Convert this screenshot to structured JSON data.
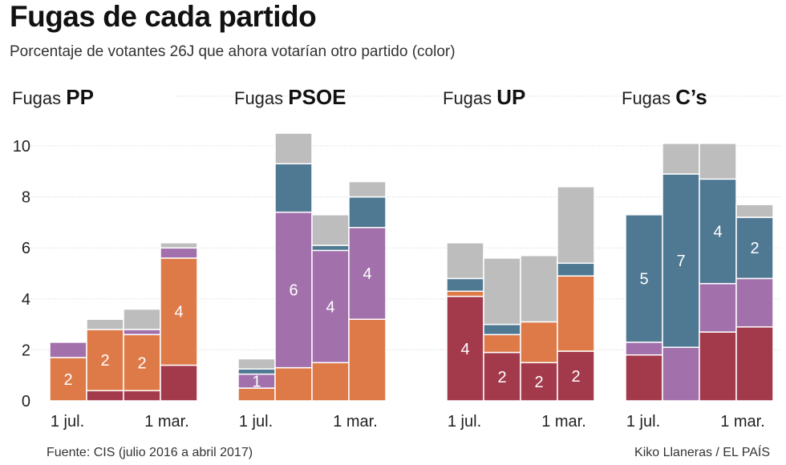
{
  "title": "Fugas de cada partido",
  "subtitle": "Porcentaje de votantes 26J que ahora votarían otro partido (color)",
  "source": "Fuente: CIS (julio 2016 a abril 2017)",
  "credit": "Kiko Llaneras / EL PAÍS",
  "colors": {
    "PP": "#a33a4c",
    "PSOE": "#dd7a48",
    "UP": "#a271ac",
    "Cs": "#4f7892",
    "other": "#bdbdbd"
  },
  "chart_data": {
    "type": "bar",
    "stacked": true,
    "ylim": [
      0,
      10
    ],
    "yticks": [
      0,
      2,
      4,
      6,
      8,
      10
    ],
    "grid": true,
    "stack_order": [
      "PP",
      "PSOE",
      "UP",
      "Cs",
      "other"
    ],
    "panels": [
      {
        "prefix": "Fugas",
        "party": "PP",
        "xlabels": [
          "1 jul.",
          "1 mar."
        ],
        "bars": [
          {
            "PSOE": 1.7,
            "UP": 0.6,
            "labels": {
              "PSOE": "2"
            }
          },
          {
            "PP": 0.4,
            "PSOE": 2.4,
            "other": 0.4,
            "labels": {
              "PSOE": "2"
            }
          },
          {
            "PP": 0.4,
            "PSOE": 2.2,
            "UP": 0.2,
            "other": 0.8,
            "labels": {
              "PSOE": "2"
            }
          },
          {
            "PP": 1.4,
            "PSOE": 4.2,
            "UP": 0.4,
            "other": 0.2,
            "labels": {
              "PSOE": "4"
            }
          }
        ]
      },
      {
        "prefix": "Fugas",
        "party": "PSOE",
        "xlabels": [
          "1 jul.",
          "1 mar."
        ],
        "bars": [
          {
            "PSOE": 0.5,
            "UP": 0.55,
            "Cs": 0.2,
            "other": 0.4,
            "labels": {
              "UP": "1"
            }
          },
          {
            "PSOE": 1.3,
            "UP": 6.1,
            "Cs": 1.9,
            "other": 1.2,
            "labels": {
              "UP": "6"
            }
          },
          {
            "PSOE": 1.5,
            "UP": 4.4,
            "Cs": 0.2,
            "other": 1.2,
            "labels": {
              "UP": "4"
            }
          },
          {
            "PSOE": 3.2,
            "UP": 3.6,
            "Cs": 1.2,
            "other": 0.6,
            "labels": {
              "UP": "4"
            }
          }
        ]
      },
      {
        "prefix": "Fugas",
        "party": "UP",
        "xlabels": [
          "1 jul.",
          "1 mar."
        ],
        "bars": [
          {
            "PP": 4.1,
            "PSOE": 0.2,
            "Cs": 0.5,
            "other": 1.4,
            "labels": {
              "PP": "4"
            }
          },
          {
            "PP": 1.9,
            "PSOE": 0.7,
            "Cs": 0.4,
            "other": 2.6,
            "labels": {
              "PP": "2"
            }
          },
          {
            "PP": 1.5,
            "PSOE": 1.6,
            "other": 2.6,
            "labels": {
              "PP": "2"
            }
          },
          {
            "PP": 1.95,
            "PSOE": 2.95,
            "Cs": 0.5,
            "other": 3.0,
            "labels": {
              "PP": "2"
            }
          }
        ]
      },
      {
        "prefix": "Fugas",
        "party": "C’s",
        "xlabels": [
          "1 jul.",
          "1 mar."
        ],
        "bars": [
          {
            "PP": 1.8,
            "UP": 0.5,
            "Cs": 5.0,
            "labels": {
              "Cs": "5"
            }
          },
          {
            "UP": 2.1,
            "Cs": 6.8,
            "other": 1.2,
            "labels": {
              "Cs": "7"
            }
          },
          {
            "PP": 2.7,
            "UP": 1.9,
            "Cs": 4.1,
            "other": 1.4,
            "labels": {
              "Cs": "4"
            }
          },
          {
            "PP": 2.9,
            "UP": 1.9,
            "Cs": 2.4,
            "other": 0.5,
            "labels": {
              "Cs": "2"
            }
          }
        ]
      }
    ]
  }
}
